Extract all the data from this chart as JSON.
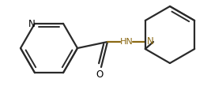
{
  "bg_color": "#ffffff",
  "bond_color": "#2a2a2a",
  "label_color": "#000000",
  "hn_n_color": "#8B6914",
  "figsize": [
    2.67,
    1.15
  ],
  "dpi": 100,
  "xlim": [
    0,
    267
  ],
  "ylim": [
    0,
    115
  ]
}
